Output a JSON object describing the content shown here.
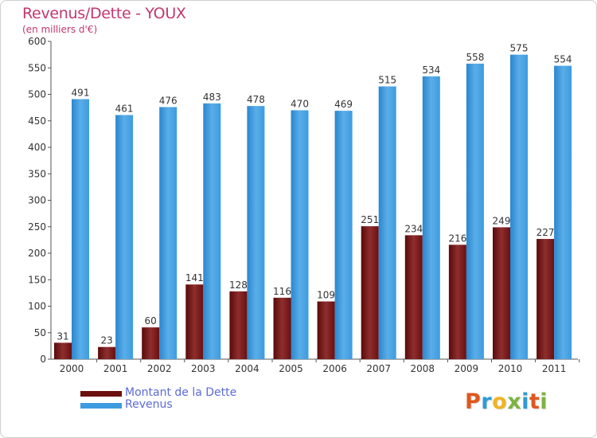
{
  "title": "Revenus/Dette - YOUX",
  "subtitle": "(en milliers d'€)",
  "colors": {
    "title": "#c2376e",
    "dette": "#7a1a1a",
    "dette_light": "#8e2e2e",
    "revenus": "#2f8fd8",
    "revenus_light": "#5aaee8",
    "legend_text": "#5b6bd6"
  },
  "legend": [
    {
      "label": "Montant de la Dette",
      "color": "#6b0f0f"
    },
    {
      "label": "Revenus",
      "color": "#3d9be0"
    }
  ],
  "logo": {
    "letters": [
      "P",
      "r",
      "o",
      "x",
      "i",
      "t",
      "i"
    ],
    "colors": [
      "#e0571f",
      "#2f9bd6",
      "#f0b323",
      "#7cb342",
      "#2f9bd6",
      "#e0571f",
      "#7cb342"
    ]
  },
  "chart_data": {
    "type": "bar",
    "title": "Revenus/Dette - YOUX",
    "subtitle": "(en milliers d'€)",
    "categories": [
      "2000",
      "2001",
      "2002",
      "2003",
      "2004",
      "2005",
      "2006",
      "2007",
      "2008",
      "2009",
      "2010",
      "2011"
    ],
    "series": [
      {
        "name": "Montant de la Dette",
        "values": [
          31,
          23,
          60,
          141,
          128,
          116,
          109,
          251,
          234,
          216,
          249,
          227
        ]
      },
      {
        "name": "Revenus",
        "values": [
          491,
          461,
          476,
          483,
          478,
          470,
          469,
          515,
          534,
          558,
          575,
          554
        ]
      }
    ],
    "ylim": [
      0,
      600
    ],
    "yticks": [
      0,
      50,
      100,
      150,
      200,
      250,
      300,
      350,
      400,
      450,
      500,
      550,
      600
    ],
    "grid": false,
    "legend_position": "bottom-left"
  }
}
